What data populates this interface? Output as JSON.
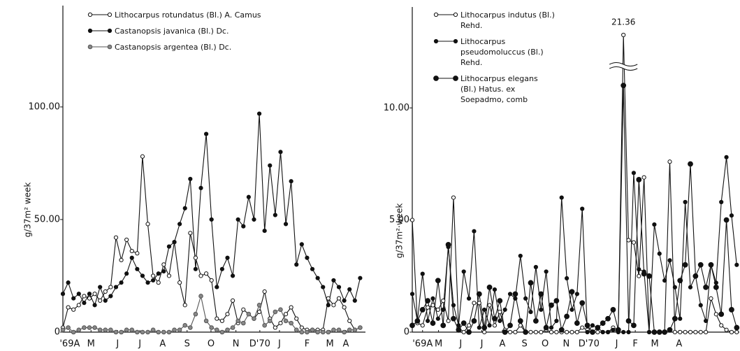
{
  "chart_data": [
    {
      "type": "line",
      "ylabel": "g/37m² week",
      "x": [
        0,
        1,
        2,
        3,
        4,
        5,
        6,
        7,
        8,
        9,
        10,
        11,
        12,
        13,
        14,
        15,
        16,
        17,
        18,
        19,
        20,
        21,
        22,
        23,
        24,
        25,
        26,
        27,
        28,
        29,
        30,
        31,
        32,
        33,
        34,
        35,
        36,
        37,
        38,
        39,
        40,
        41,
        42,
        43,
        44,
        45,
        46,
        47,
        48,
        49,
        50,
        51,
        52,
        53,
        54,
        55,
        56
      ],
      "xlim": [
        0,
        57
      ],
      "xticks": [
        {
          "value": 1.3,
          "label": "'69A"
        },
        {
          "value": 5.3,
          "label": "M"
        },
        {
          "value": 10.3,
          "label": "J"
        },
        {
          "value": 14.5,
          "label": "J"
        },
        {
          "value": 18.8,
          "label": "A"
        },
        {
          "value": 23.4,
          "label": "S"
        },
        {
          "value": 27.9,
          "label": "O"
        },
        {
          "value": 32.6,
          "label": "N"
        },
        {
          "value": 37.1,
          "label": "D'70"
        },
        {
          "value": 40.8,
          "label": "J"
        },
        {
          "value": 46,
          "label": "F"
        },
        {
          "value": 50.3,
          "label": "M"
        },
        {
          "value": 53.3,
          "label": "A"
        }
      ],
      "ylim": [
        0,
        145
      ],
      "yticks": [
        0,
        {
          "value": 50,
          "label": "50.00"
        },
        {
          "value": 100,
          "label": "100.00"
        }
      ],
      "legend": "upper left",
      "series": [
        {
          "name": "Lithocarpus rotundatus (Bl.) A. Camus",
          "color": "#111111",
          "marker": "open",
          "values": [
            2,
            11,
            10,
            12,
            16,
            15,
            17,
            14,
            18,
            20,
            42,
            32,
            41,
            36,
            35,
            78,
            48,
            25,
            22,
            30,
            25,
            40,
            22,
            12,
            44,
            33,
            25,
            26,
            23,
            6,
            5,
            8,
            14,
            4,
            10,
            8,
            6,
            9,
            18,
            6,
            2,
            4,
            8,
            11,
            6,
            2,
            1,
            1,
            1,
            1,
            15,
            12,
            15,
            11,
            5,
            1,
            2
          ]
        },
        {
          "name": "Castanopsis javanica (Bl.) Dc.",
          "color": "#111111",
          "marker": "filled",
          "values": [
            17,
            22,
            15,
            17,
            13,
            17,
            12,
            20,
            14,
            16,
            20,
            22,
            26,
            33,
            28,
            25,
            22,
            23,
            26,
            27,
            38,
            40,
            48,
            55,
            68,
            28,
            64,
            88,
            50,
            20,
            28,
            33,
            25,
            50,
            47,
            60,
            50,
            97,
            45,
            74,
            52,
            80,
            48,
            67,
            30,
            39,
            33,
            28,
            24,
            20,
            12,
            23,
            20,
            14,
            19,
            14,
            24
          ]
        },
        {
          "name": "Castanopsis argentea (Bl.) Dc.",
          "color": "#555555",
          "marker": "gray",
          "values": [
            1,
            2,
            0,
            1,
            2,
            2,
            2,
            1,
            1,
            1,
            0,
            0,
            1,
            1,
            0,
            0,
            0,
            1,
            0,
            0,
            0,
            1,
            1,
            3,
            2,
            8,
            16,
            5,
            2,
            1,
            0,
            1,
            2,
            5,
            4,
            8,
            6,
            12,
            3,
            5,
            9,
            10,
            5,
            4,
            1,
            0,
            0,
            1,
            0,
            0,
            0,
            1,
            1,
            0,
            1,
            1,
            2
          ]
        }
      ]
    },
    {
      "type": "line",
      "ylabel": "g/37m²·week",
      "x": [
        0,
        1,
        2,
        3,
        4,
        5,
        6,
        7,
        8,
        9,
        10,
        11,
        12,
        13,
        14,
        15,
        16,
        17,
        18,
        19,
        20,
        21,
        22,
        23,
        24,
        25,
        26,
        27,
        28,
        29,
        30,
        31,
        32,
        33,
        34,
        35,
        36,
        37,
        38,
        39,
        40,
        41,
        42,
        43,
        44,
        45,
        46,
        47,
        48,
        49,
        50,
        51,
        52,
        53,
        54,
        55,
        56,
        57,
        58,
        59,
        60,
        61,
        62,
        63
      ],
      "xlim": [
        0,
        63.5
      ],
      "xticks": [
        {
          "value": 2,
          "label": "'69A"
        },
        {
          "value": 5.1,
          "label": "M"
        },
        {
          "value": 9.4,
          "label": "J"
        },
        {
          "value": 13.5,
          "label": "J"
        },
        {
          "value": 17.5,
          "label": "A"
        },
        {
          "value": 21.8,
          "label": "S"
        },
        {
          "value": 25.8,
          "label": "O"
        },
        {
          "value": 29.9,
          "label": "N"
        },
        {
          "value": 34.3,
          "label": "D'70"
        },
        {
          "value": 39.7,
          "label": "J"
        },
        {
          "value": 43.3,
          "label": "F"
        },
        {
          "value": 47.1,
          "label": "M"
        },
        {
          "value": 51.8,
          "label": "A"
        }
      ],
      "ylim": [
        0,
        14.5
      ],
      "yticks": [
        0,
        {
          "value": 5,
          "label": "5.00"
        },
        {
          "value": 10,
          "label": "10.00"
        }
      ],
      "legend": "upper left",
      "series": [
        {
          "name": "Lithocarpus indutus (Bl.) Rehd.",
          "color": "#111111",
          "marker": "open",
          "values": [
            5.0,
            0.4,
            0.3,
            1.1,
            1.2,
            1.0,
            1.4,
            0.5,
            6.0,
            0.2,
            0,
            0.3,
            1.3,
            1.3,
            0,
            1.2,
            0.3,
            0.9,
            0.1,
            0,
            0,
            0.3,
            0,
            0,
            0,
            0,
            0.1,
            0,
            0,
            0,
            0,
            0,
            0,
            0.2,
            0.1,
            0,
            0,
            0,
            0,
            0.2,
            0.1,
            21.36,
            4.1,
            4.0,
            2.5,
            6.9,
            0,
            0,
            0,
            0,
            7.6,
            0,
            0,
            0,
            0,
            0,
            0,
            0,
            1.5,
            0.8,
            0.3,
            0.1,
            0,
            0
          ]
        },
        {
          "name": "Lithocarpus pseudomoluccus (Bl.) Rehd.",
          "color": "#111111",
          "marker": "filled",
          "values": [
            1.7,
            0.5,
            2.6,
            0.5,
            1.5,
            0.6,
            1.0,
            3.8,
            1.2,
            0.3,
            2.7,
            1.5,
            4.5,
            0.2,
            1.0,
            0.3,
            1.9,
            0.5,
            1.0,
            1.7,
            1.5,
            3.4,
            1.5,
            0.9,
            2.9,
            1.0,
            2.7,
            0.2,
            0.5,
            6.0,
            2.4,
            1.0,
            1.7,
            5.5,
            0,
            0.3,
            0.2,
            0,
            0,
            0.1,
            0,
            0,
            0,
            7.1,
            2.8,
            2.7,
            0,
            4.8,
            3.5,
            2.3,
            3.2,
            2.0,
            0.6,
            5.8,
            2.0,
            2.5,
            1.2,
            0.5,
            3.0,
            2.2,
            5.8,
            7.8,
            5.2,
            3.0
          ]
        },
        {
          "name": "Lithocarpus elegans (Bl.) Hatus. ex Soepadmo, comb",
          "color": "#111111",
          "marker": "large",
          "values": [
            0.3,
            0.5,
            1.0,
            1.4,
            0.4,
            2.3,
            0.3,
            3.9,
            0.6,
            0.1,
            0.4,
            0,
            0.5,
            1.7,
            0.2,
            2.0,
            0.6,
            1.4,
            0,
            0.3,
            1.7,
            0.5,
            0,
            2.2,
            0.5,
            1.7,
            0.2,
            1.2,
            1.4,
            0.1,
            0.7,
            1.8,
            0.4,
            1.3,
            0.3,
            0,
            0.2,
            0.4,
            0.6,
            1.0,
            0.1,
            11.0,
            0.5,
            0.3,
            6.8,
            2.6,
            2.5,
            0,
            0,
            0,
            0.1,
            0.6,
            2.3,
            3.0,
            7.5,
            2.5,
            3.0,
            2.0,
            3.0,
            2.0,
            0.8,
            5.0,
            1.0,
            0.2
          ]
        }
      ]
    }
  ]
}
